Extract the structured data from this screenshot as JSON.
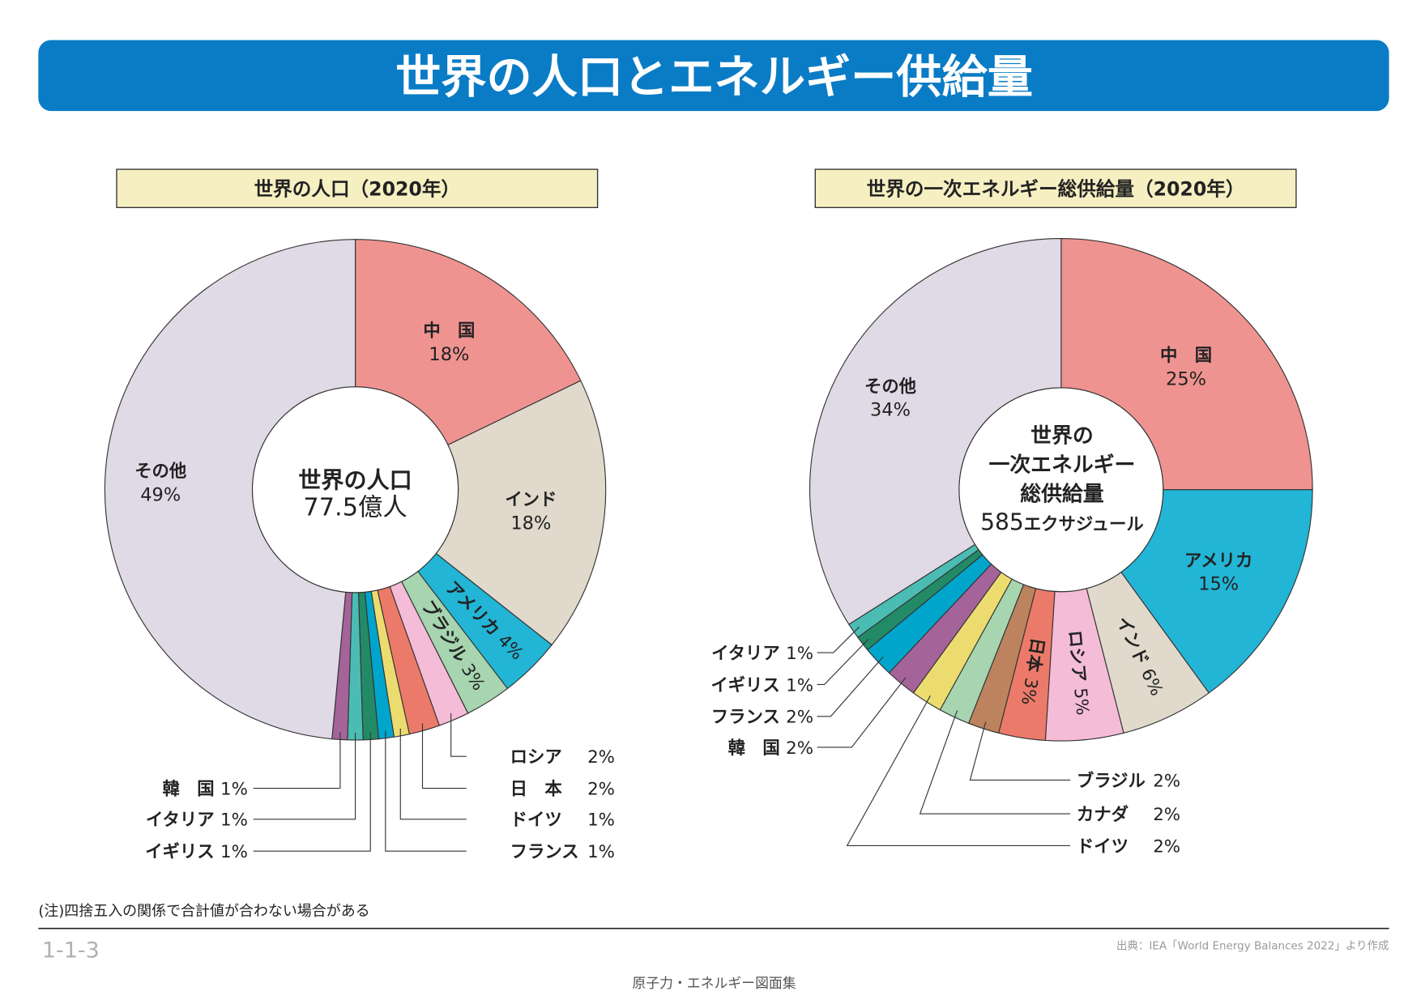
{
  "header": {
    "title": "世界の人口とエネルギー供給量",
    "accent": "#0a7cc6"
  },
  "chart_data": [
    {
      "type": "pie",
      "title": "世界の人口（2020年）",
      "center_label": [
        "世界の人口",
        "77.5億人"
      ],
      "slices": [
        {
          "name": "中　国",
          "label": "18%",
          "value": 18,
          "color": "#ef9391",
          "style": "inside"
        },
        {
          "name": "インド",
          "label": "18%",
          "value": 18,
          "color": "#e0d9cc",
          "style": "inside"
        },
        {
          "name": "アメリカ",
          "label": "4%",
          "value": 4,
          "color": "#22b5d6",
          "style": "radial"
        },
        {
          "name": "ブラジル",
          "label": "3%",
          "value": 3,
          "color": "#a6d5b0",
          "style": "radial"
        },
        {
          "name": "ロシア",
          "label": "2%",
          "value": 2,
          "color": "#f4bcd6",
          "style": "leader"
        },
        {
          "name": "日　本",
          "label": "2%",
          "value": 2,
          "color": "#ec7a6a",
          "style": "leader"
        },
        {
          "name": "ドイツ",
          "label": "1%",
          "value": 1,
          "color": "#ecdc70",
          "style": "leader"
        },
        {
          "name": "フランス",
          "label": "1%",
          "value": 1,
          "color": "#00a5cc",
          "style": "leader"
        },
        {
          "name": "イギリス",
          "label": "1%",
          "value": 1,
          "color": "#238a67",
          "style": "leader"
        },
        {
          "name": "イタリア",
          "label": "1%",
          "value": 1,
          "color": "#4bbcb3",
          "style": "leader"
        },
        {
          "name": "韓　国",
          "label": "1%",
          "value": 1,
          "color": "#a46399",
          "style": "leader"
        },
        {
          "name": "その他",
          "label": "49%",
          "value": 49,
          "color": "#dfdae6",
          "style": "inside"
        }
      ]
    },
    {
      "type": "pie",
      "title": "世界の一次エネルギー総供給量（2020年）",
      "center_label": [
        "世界の",
        "一次エネルギー",
        "総供給量",
        "585",
        "エクサジュール"
      ],
      "slices": [
        {
          "name": "中　国",
          "label": "25%",
          "value": 25,
          "color": "#ef9391",
          "style": "inside"
        },
        {
          "name": "アメリカ",
          "label": "15%",
          "value": 15,
          "color": "#22b5d6",
          "style": "inside"
        },
        {
          "name": "インド",
          "label": "6%",
          "value": 6,
          "color": "#e0d9cc",
          "style": "radial"
        },
        {
          "name": "ロシア",
          "label": "5%",
          "value": 5,
          "color": "#f4bcd6",
          "style": "radial"
        },
        {
          "name": "日本",
          "label": "3%",
          "value": 3,
          "color": "#ec7a6a",
          "style": "radial"
        },
        {
          "name": "ブラジル",
          "label": "2%",
          "value": 2,
          "color": "#bd835e",
          "style": "leader"
        },
        {
          "name": "カナダ",
          "label": "2%",
          "value": 2,
          "color": "#a6d5b0",
          "style": "leader"
        },
        {
          "name": "ドイツ",
          "label": "2%",
          "value": 2,
          "color": "#ecdc70",
          "style": "leader"
        },
        {
          "name": "韓　国",
          "label": "2%",
          "value": 2,
          "color": "#a46399",
          "style": "leader"
        },
        {
          "name": "フランス",
          "label": "2%",
          "value": 2,
          "color": "#00a5cc",
          "style": "leader"
        },
        {
          "name": "イギリス",
          "label": "1%",
          "value": 1,
          "color": "#238a67",
          "style": "leader"
        },
        {
          "name": "イタリア",
          "label": "1%",
          "value": 1,
          "color": "#4bbcb3",
          "style": "leader"
        },
        {
          "name": "その他",
          "label": "34%",
          "value": 34,
          "color": "#dfdae6",
          "style": "inside"
        }
      ]
    }
  ],
  "footer": {
    "note": "(注)四捨五入の関係で合計値が合わない場合がある",
    "figure_number": "1-1-3",
    "source": "出典：IEA「World Energy Balances 2022」より作成",
    "book_title": "原子力・エネルギー図面集"
  }
}
